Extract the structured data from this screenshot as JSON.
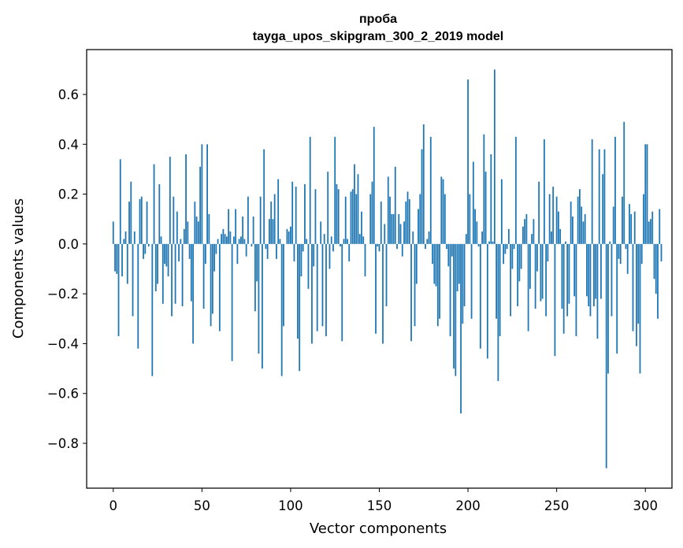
{
  "chart_data": {
    "type": "bar",
    "title": "проба",
    "subtitle": "tayga_upos_skipgram_300_2_2019 model",
    "xlabel": "Vector components",
    "ylabel": "Components values",
    "xlim": [
      -15,
      315
    ],
    "ylim": [
      -0.98,
      0.78
    ],
    "x_ticks": [
      {
        "value": 0,
        "label": "0"
      },
      {
        "value": 50,
        "label": "50"
      },
      {
        "value": 100,
        "label": "100"
      },
      {
        "value": 150,
        "label": "150"
      },
      {
        "value": 200,
        "label": "200"
      },
      {
        "value": 250,
        "label": "250"
      },
      {
        "value": 300,
        "label": "300"
      }
    ],
    "y_ticks": [
      {
        "value": 0.6,
        "label": "0.6"
      },
      {
        "value": 0.4,
        "label": "0.4"
      },
      {
        "value": 0.2,
        "label": "0.2"
      },
      {
        "value": 0.0,
        "label": "0.0"
      },
      {
        "value": -0.2,
        "label": "−0.2"
      },
      {
        "value": -0.4,
        "label": "−0.4"
      },
      {
        "value": -0.6,
        "label": "−0.6"
      },
      {
        "value": -0.8,
        "label": "−0.8"
      }
    ],
    "color": "#1f77b4",
    "values": [
      0.09,
      -0.11,
      -0.12,
      -0.37,
      0.34,
      -0.13,
      0.02,
      0.05,
      -0.16,
      0.17,
      0.25,
      -0.29,
      0.05,
      0.0,
      -0.42,
      0.18,
      0.19,
      -0.06,
      -0.04,
      0.17,
      -0.01,
      0.0,
      -0.53,
      0.32,
      -0.19,
      -0.16,
      0.24,
      0.03,
      -0.24,
      -0.08,
      -0.09,
      -0.13,
      0.35,
      -0.29,
      0.19,
      -0.24,
      0.13,
      -0.07,
      0.02,
      -0.25,
      0.06,
      0.36,
      0.09,
      -0.06,
      -0.23,
      -0.4,
      0.17,
      0.11,
      0.09,
      0.31,
      0.4,
      -0.26,
      -0.08,
      0.4,
      0.12,
      -0.33,
      -0.28,
      -0.11,
      -0.04,
      0.02,
      -0.35,
      0.04,
      0.06,
      0.04,
      0.03,
      0.14,
      0.05,
      -0.47,
      0.03,
      0.14,
      -0.08,
      0.02,
      0.03,
      0.11,
      0.02,
      -0.05,
      0.19,
      0.0,
      -0.01,
      0.11,
      -0.27,
      -0.15,
      -0.44,
      0.19,
      -0.5,
      0.38,
      -0.02,
      -0.06,
      0.1,
      0.17,
      0.1,
      0.2,
      -0.06,
      0.26,
      0.02,
      -0.53,
      -0.33,
      0.0,
      0.06,
      0.05,
      0.07,
      0.25,
      -0.07,
      0.23,
      -0.38,
      -0.51,
      -0.13,
      -0.03,
      0.24,
      0.02,
      -0.18,
      0.43,
      -0.4,
      -0.09,
      0.22,
      -0.35,
      0.0,
      0.09,
      -0.33,
      0.04,
      -0.37,
      0.29,
      -0.1,
      0.03,
      -0.03,
      0.43,
      0.24,
      0.22,
      -0.01,
      -0.39,
      0.02,
      0.19,
      0.02,
      -0.07,
      0.21,
      0.22,
      0.32,
      0.2,
      0.28,
      0.04,
      0.13,
      0.03,
      -0.13,
      0.0,
      0.0,
      0.2,
      0.25,
      0.47,
      -0.36,
      -0.01,
      -0.03,
      0.17,
      -0.4,
      0.08,
      -0.25,
      0.27,
      0.19,
      0.12,
      0.12,
      0.31,
      -0.02,
      0.12,
      0.08,
      -0.05,
      0.09,
      0.17,
      0.21,
      0.18,
      -0.39,
      0.05,
      -0.33,
      -0.16,
      0.14,
      0.2,
      0.38,
      0.48,
      -0.02,
      0.02,
      0.05,
      0.43,
      -0.08,
      -0.16,
      -0.17,
      -0.33,
      -0.3,
      0.27,
      0.26,
      0.2,
      -0.02,
      -0.09,
      -0.37,
      -0.05,
      -0.5,
      -0.53,
      -0.19,
      -0.16,
      -0.68,
      -0.32,
      -0.25,
      0.04,
      0.66,
      0.2,
      -0.3,
      0.33,
      0.14,
      0.09,
      -0.01,
      -0.42,
      0.05,
      0.44,
      0.29,
      -0.46,
      0.01,
      0.36,
      0.01,
      0.7,
      -0.3,
      -0.55,
      -0.37,
      0.26,
      -0.08,
      -0.04,
      -0.02,
      0.06,
      -0.29,
      -0.1,
      -0.02,
      0.43,
      -0.25,
      -0.15,
      -0.1,
      0.07,
      0.1,
      0.12,
      -0.35,
      -0.18,
      0.04,
      0.1,
      -0.26,
      -0.11,
      0.25,
      -0.23,
      -0.22,
      0.42,
      -0.29,
      -0.07,
      0.2,
      0.05,
      0.23,
      -0.45,
      0.19,
      0.13,
      0.06,
      -0.26,
      -0.36,
      0.01,
      -0.29,
      -0.24,
      0.17,
      0.11,
      -0.21,
      -0.37,
      0.19,
      0.22,
      0.15,
      0.09,
      0.12,
      -0.21,
      -0.25,
      -0.29,
      0.42,
      -0.25,
      -0.22,
      -0.38,
      0.38,
      -0.22,
      0.28,
      0.38,
      -0.9,
      -0.52,
      0.01,
      -0.29,
      0.15,
      0.43,
      -0.44,
      -0.06,
      -0.08,
      0.19,
      0.49,
      -0.02,
      -0.12,
      0.16,
      0.12,
      -0.35,
      0.13,
      -0.41,
      -0.32,
      -0.52,
      -0.08,
      0.2,
      0.4,
      0.4,
      0.09,
      0.1,
      0.13,
      -0.14,
      -0.2,
      -0.3,
      0.14,
      -0.07
    ]
  }
}
